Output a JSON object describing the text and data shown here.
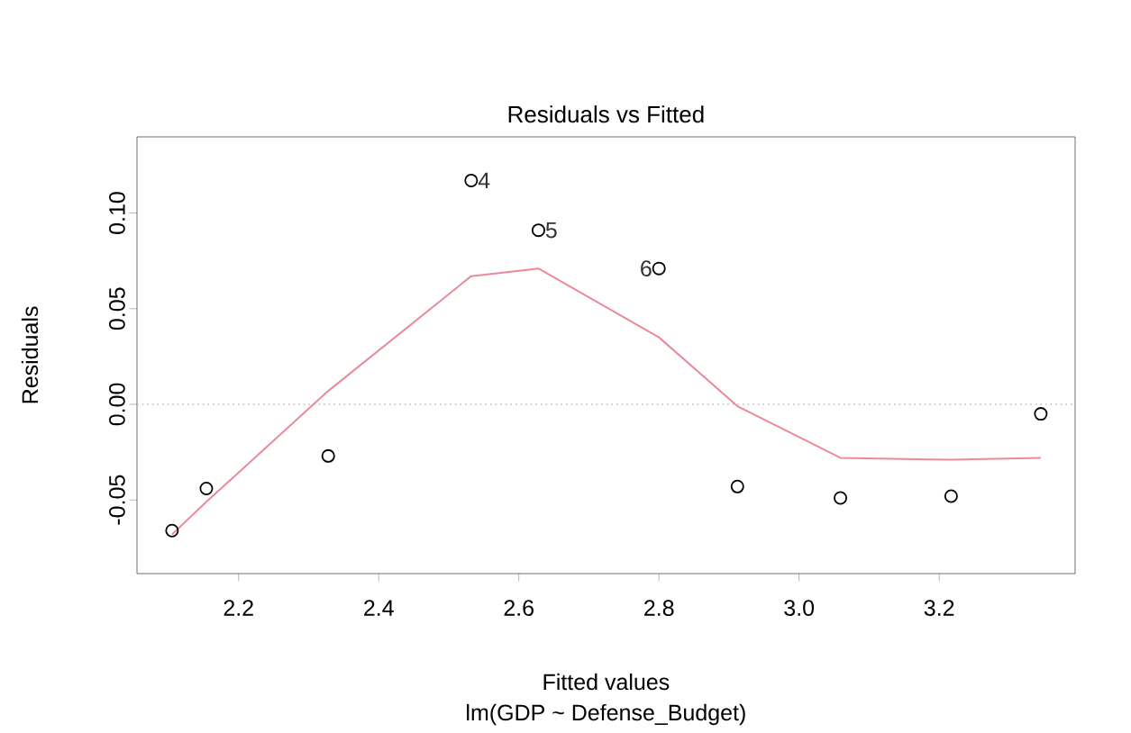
{
  "chart_data": {
    "type": "scatter",
    "title": "Residuals vs Fitted",
    "subtitle": "lm(GDP ~ Defense_Budget)",
    "xlabel": "Fitted values",
    "ylabel": "Residuals",
    "grid": false,
    "series": [
      {
        "marker": "circle",
        "color": "#000000",
        "x": [
          2.105,
          2.154,
          2.328,
          2.532,
          2.628,
          2.8,
          2.912,
          3.059,
          3.217,
          3.345
        ],
        "values": [
          -0.066,
          -0.044,
          -0.027,
          0.117,
          0.091,
          0.071,
          -0.043,
          -0.049,
          -0.048,
          -0.005
        ]
      },
      {
        "type": "line",
        "marker": "none",
        "color": "#eb8a99",
        "x": [
          2.105,
          2.154,
          2.328,
          2.532,
          2.628,
          2.8,
          2.912,
          3.059,
          3.217,
          3.345
        ],
        "values": [
          -0.068,
          -0.051,
          0.007,
          0.067,
          0.071,
          0.035,
          -0.001,
          -0.028,
          -0.029,
          -0.028
        ]
      }
    ],
    "xlim": [
      2.055,
      3.394
    ],
    "ylim": [
      -0.0885,
      0.1398
    ],
    "xticks": [
      {
        "value": 2.2,
        "label": "2.2"
      },
      {
        "value": 2.4,
        "label": "2.4"
      },
      {
        "value": 2.6,
        "label": "2.6"
      },
      {
        "value": 2.8,
        "label": "2.8"
      },
      {
        "value": 3.0,
        "label": "3.0"
      },
      {
        "value": 3.2,
        "label": "3.2"
      }
    ],
    "yticks": [
      {
        "value": -0.05,
        "label": "-0.05"
      },
      {
        "value": 0,
        "label": "0.00"
      },
      {
        "value": 0.05,
        "label": "0.05"
      },
      {
        "value": 0.1,
        "label": "0.10"
      }
    ],
    "ref_lines": [
      {
        "axis": "y",
        "value": 0,
        "color": "#bebebe",
        "line_style": "dotted"
      }
    ],
    "annotations": [
      {
        "text": "4",
        "x": 2.532,
        "y": 0.117
      },
      {
        "text": "5",
        "x": 2.628,
        "y": 0.091
      },
      {
        "text": "6",
        "x": 2.8,
        "y": 0.071
      }
    ]
  }
}
